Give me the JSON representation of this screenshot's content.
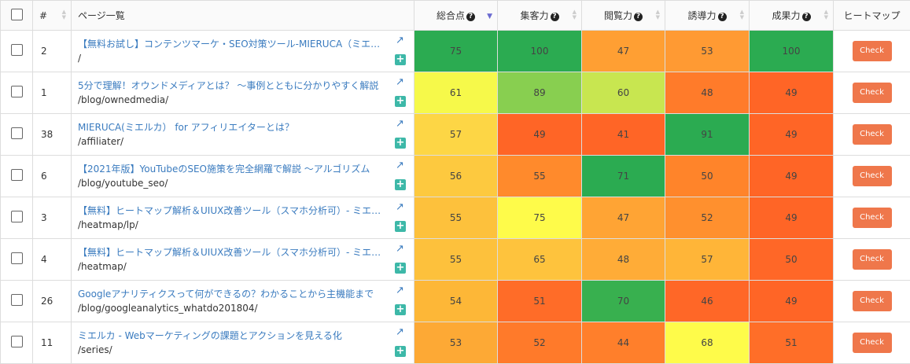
{
  "header": {
    "number": "#",
    "page": "ページ一覧",
    "total": "総合点",
    "acquisition": "集客力",
    "reading": "閲覧力",
    "guidance": "誘導力",
    "results": "成果力",
    "heatmap": "ヒートマップ",
    "help": "?"
  },
  "check_label": "Check",
  "rows": [
    {
      "num": "2",
      "title": "【無料お試し】コンテンツマーケ・SEO対策ツール-MIERUCA（ミエルカ）",
      "path": "/",
      "scores": [
        75,
        100,
        47,
        53,
        100
      ],
      "colors": [
        "#2bab51",
        "#2bab51",
        "#ff9f33",
        "#ff9a33",
        "#2bab51"
      ]
    },
    {
      "num": "1",
      "title": "5分で理解！オウンドメディアとは？ ～事例とともに分かりやすく解説",
      "path": "/blog/ownedmedia/",
      "scores": [
        61,
        89,
        60,
        48,
        49
      ],
      "colors": [
        "#f6f94a",
        "#88cf50",
        "#c8e650",
        "#ff7b2a",
        "#ff6526"
      ]
    },
    {
      "num": "38",
      "title": "MIERUCA(ミエルカ） for アフィリエイターとは？",
      "path": "/affiliater/",
      "scores": [
        57,
        49,
        41,
        91,
        49
      ],
      "colors": [
        "#fdd645",
        "#ff6526",
        "#ff6526",
        "#2bab51",
        "#ff6526"
      ]
    },
    {
      "num": "6",
      "title": "【2021年版】YouTubeのSEO施策を完全網羅で解説 ～アルゴリズム",
      "path": "/blog/youtube_seo/",
      "scores": [
        56,
        55,
        71,
        50,
        49
      ],
      "colors": [
        "#fdc93f",
        "#ff8a2c",
        "#2bab51",
        "#ff842a",
        "#ff6526"
      ]
    },
    {
      "num": "3",
      "title": "【無料】ヒートマップ解析＆UIUX改善ツール（スマホ分析可）- ミエルカ",
      "path": "/heatmap/lp/",
      "scores": [
        55,
        75,
        47,
        52,
        49
      ],
      "colors": [
        "#fdc13c",
        "#fefb4a",
        "#ffa434",
        "#ff902e",
        "#ff6526"
      ]
    },
    {
      "num": "4",
      "title": "【無料】ヒートマップ解析＆UIUX改善ツール（スマホ分析可）- ミエルカ",
      "path": "/heatmap/",
      "scores": [
        55,
        65,
        48,
        57,
        50
      ],
      "colors": [
        "#fdc13c",
        "#fec33d",
        "#ffac37",
        "#ffb538",
        "#ff6727"
      ]
    },
    {
      "num": "26",
      "title": "Googleアナリティクスって何ができるの？わかることから主機能まで",
      "path": "/blog/googleanalytics_whatdo201804/",
      "scores": [
        54,
        51,
        70,
        46,
        49
      ],
      "colors": [
        "#fdb737",
        "#ff6c28",
        "#38b04f",
        "#ff6727",
        "#ff6526"
      ]
    },
    {
      "num": "11",
      "title": "ミエルカ - Webマーケティングの課題とアクションを見える化",
      "path": "/series/",
      "scores": [
        53,
        52,
        44,
        68,
        51
      ],
      "colors": [
        "#fda935",
        "#ff7a2a",
        "#ff7f2b",
        "#fefb4a",
        "#ff6e28"
      ]
    }
  ]
}
